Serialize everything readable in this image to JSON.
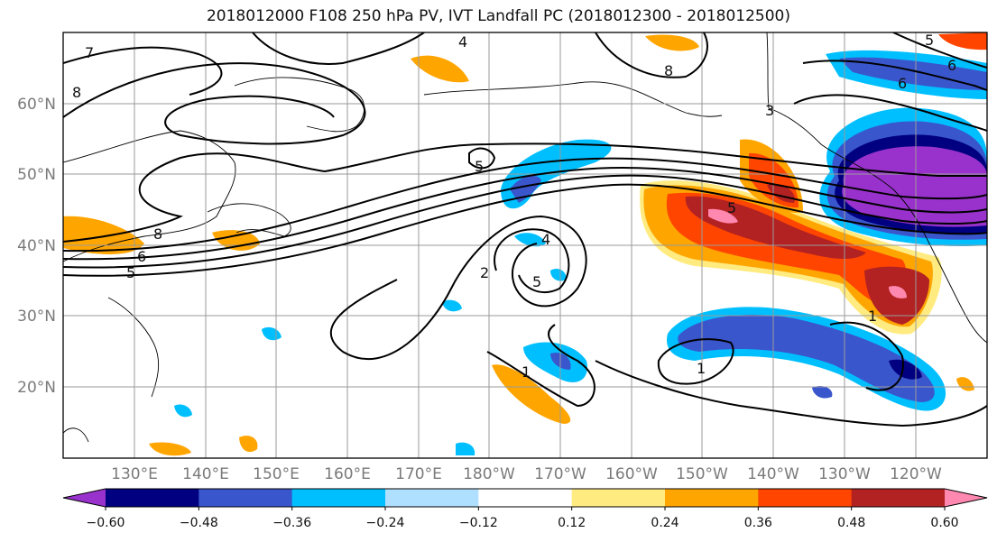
{
  "title": "2018012000 F108 250 hPa PV, IVT Landfall PC (2018012300 - 2018012500)",
  "map": {
    "lat_labels": [
      "20°N",
      "30°N",
      "40°N",
      "50°N",
      "60°N"
    ],
    "lon_labels": [
      "130°E",
      "140°E",
      "150°E",
      "160°E",
      "170°E",
      "180°W",
      "170°W",
      "160°W",
      "150°W",
      "140°W",
      "130°W",
      "120°W"
    ],
    "pv_contour_labels": [
      "7",
      "8",
      "4",
      "8",
      "6",
      "6",
      "5",
      "5",
      "8",
      "6",
      "5",
      "4",
      "2",
      "5",
      "1",
      "1",
      "1",
      "3",
      "5"
    ]
  },
  "colorbar": {
    "colors": [
      "#9932CC",
      "#000080",
      "#3A56CC",
      "#00BFFF",
      "#B0E0FF",
      "#FFFFFF",
      "#FFEB80",
      "#FFA500",
      "#FF4500",
      "#B22222",
      "#FF88B0"
    ],
    "tick_labels": [
      "−0.60",
      "−0.48",
      "−0.36",
      "−0.24",
      "−0.12",
      "0.12",
      "0.24",
      "0.36",
      "0.48",
      "0.60"
    ]
  }
}
